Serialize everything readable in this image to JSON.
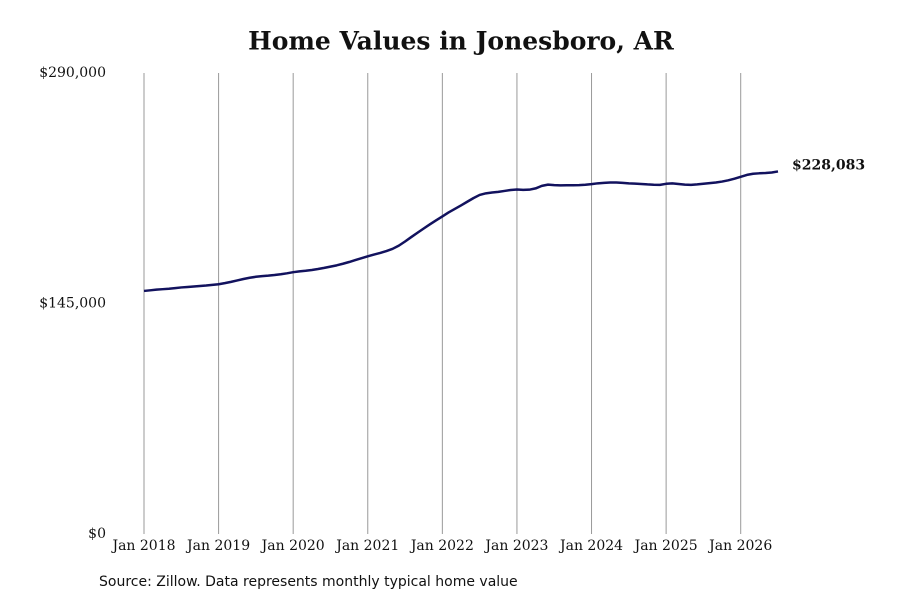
{
  "chart_data": {
    "type": "line",
    "title": "Home Values in Jonesboro, AR",
    "source": "Source: Zillow. Data represents monthly typical home value",
    "color": "#12125e",
    "x": [
      "2018-01",
      "2018-02",
      "2018-03",
      "2018-04",
      "2018-05",
      "2018-06",
      "2018-07",
      "2018-08",
      "2018-09",
      "2018-10",
      "2018-11",
      "2018-12",
      "2019-01",
      "2019-02",
      "2019-03",
      "2019-04",
      "2019-05",
      "2019-06",
      "2019-07",
      "2019-08",
      "2019-09",
      "2019-10",
      "2019-11",
      "2019-12",
      "2020-01",
      "2020-02",
      "2020-03",
      "2020-04",
      "2020-05",
      "2020-06",
      "2020-07",
      "2020-08",
      "2020-09",
      "2020-10",
      "2020-11",
      "2020-12",
      "2021-01",
      "2021-02",
      "2021-03",
      "2021-04",
      "2021-05",
      "2021-06",
      "2021-07",
      "2021-08",
      "2021-09",
      "2021-10",
      "2021-11",
      "2021-12",
      "2022-01",
      "2022-02",
      "2022-03",
      "2022-04",
      "2022-05",
      "2022-06",
      "2022-07",
      "2022-08",
      "2022-09",
      "2022-10",
      "2022-11",
      "2022-12",
      "2023-01",
      "2023-02",
      "2023-03",
      "2023-04",
      "2023-05",
      "2023-06",
      "2023-07",
      "2023-08",
      "2023-09",
      "2023-10",
      "2023-11",
      "2023-12",
      "2024-01",
      "2024-02",
      "2024-03",
      "2024-04",
      "2024-05",
      "2024-06",
      "2024-07",
      "2024-08",
      "2024-09",
      "2024-10",
      "2024-11",
      "2024-12",
      "2025-01",
      "2025-02",
      "2025-03",
      "2025-04",
      "2025-05",
      "2025-06",
      "2025-07",
      "2025-08",
      "2025-09",
      "2025-10",
      "2025-11",
      "2025-12",
      "2026-01",
      "2026-02",
      "2026-03",
      "2026-04",
      "2026-05",
      "2026-06",
      "2026-07"
    ],
    "values": [
      152900,
      153300,
      153700,
      154000,
      154300,
      154700,
      155100,
      155400,
      155700,
      156000,
      156300,
      156700,
      157100,
      157800,
      158600,
      159500,
      160400,
      161200,
      161800,
      162200,
      162500,
      162900,
      163400,
      164000,
      164700,
      165200,
      165600,
      166100,
      166700,
      167400,
      168200,
      169000,
      170000,
      171100,
      172300,
      173500,
      174700,
      175800,
      176800,
      178000,
      179400,
      181400,
      184000,
      186800,
      189500,
      192200,
      194800,
      197300,
      199800,
      202300,
      204500,
      206700,
      209000,
      211300,
      213300,
      214300,
      214800,
      215200,
      215800,
      216400,
      216700,
      216500,
      216600,
      217400,
      219000,
      219800,
      219500,
      219300,
      219400,
      219400,
      219500,
      219700,
      220100,
      220600,
      220900,
      221100,
      221100,
      220900,
      220600,
      220400,
      220200,
      219900,
      219700,
      219600,
      220300,
      220600,
      220200,
      219800,
      219600,
      219900,
      220300,
      220700,
      221100,
      221700,
      222500,
      223500,
      224700,
      225900,
      226600,
      226900,
      227100,
      227400,
      228083
    ],
    "value_labels": [
      null,
      null,
      null,
      null,
      null,
      null,
      null,
      null,
      null,
      null,
      null,
      null,
      null,
      null,
      null,
      null,
      null,
      null,
      null,
      null,
      null,
      null,
      null,
      null,
      null,
      null,
      null,
      null,
      null,
      null,
      null,
      null,
      null,
      null,
      null,
      null,
      null,
      null,
      null,
      null,
      null,
      null,
      null,
      null,
      null,
      null,
      null,
      null,
      null,
      null,
      null,
      null,
      null,
      null,
      null,
      null,
      null,
      null,
      null,
      null,
      null,
      null,
      null,
      null,
      null,
      null,
      null,
      null,
      null,
      null,
      null,
      null,
      null,
      null,
      null,
      null,
      null,
      null,
      null,
      null,
      null,
      null,
      null,
      null,
      null,
      null,
      null,
      null,
      null,
      null,
      null,
      null,
      null,
      null,
      null,
      null,
      null,
      null,
      null,
      null,
      null,
      null,
      "$228,083"
    ],
    "xlim": [
      "2018-01",
      "2026-07"
    ],
    "xticks": [
      {
        "value": "2018-01",
        "label": "Jan 2018"
      },
      {
        "value": "2019-01",
        "label": "Jan 2019"
      },
      {
        "value": "2020-01",
        "label": "Jan 2020"
      },
      {
        "value": "2021-01",
        "label": "Jan 2021"
      },
      {
        "value": "2022-01",
        "label": "Jan 2022"
      },
      {
        "value": "2023-01",
        "label": "Jan 2023"
      },
      {
        "value": "2024-01",
        "label": "Jan 2024"
      },
      {
        "value": "2025-01",
        "label": "Jan 2025"
      },
      {
        "value": "2026-01",
        "label": "Jan 2026"
      }
    ],
    "ylim": [
      0,
      290000
    ],
    "yticks": [
      {
        "value": 0,
        "label": "$0"
      },
      {
        "value": 145000,
        "label": "$145,000"
      },
      {
        "value": 290000,
        "label": "$290,000"
      }
    ],
    "grid": "x"
  }
}
